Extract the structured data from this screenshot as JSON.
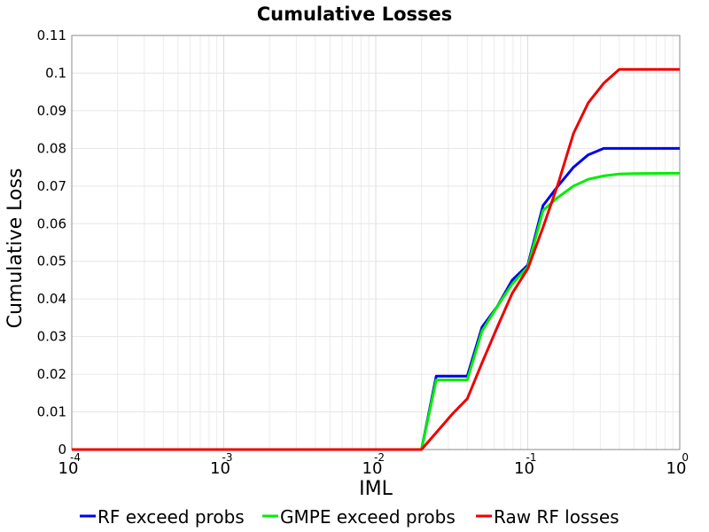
{
  "chart_data": {
    "type": "line",
    "title": "Cumulative Losses",
    "xlabel": "IML",
    "ylabel": "Cumulative Loss",
    "x_scale": "log",
    "xlim": [
      0.0001,
      1
    ],
    "ylim": [
      0,
      0.11
    ],
    "x_ticks": [
      {
        "base": "10",
        "exp": "-4",
        "value": 0.0001
      },
      {
        "base": "10",
        "exp": "-3",
        "value": 0.001
      },
      {
        "base": "10",
        "exp": "-2",
        "value": 0.01
      },
      {
        "base": "10",
        "exp": "-1",
        "value": 0.1
      },
      {
        "base": "10",
        "exp": "0",
        "value": 1
      }
    ],
    "y_ticks": [
      "0",
      "0.01",
      "0.02",
      "0.03",
      "0.04",
      "0.05",
      "0.06",
      "0.07",
      "0.08",
      "0.09",
      "0.1",
      "0.11"
    ],
    "y_tick_values": [
      0,
      0.01,
      0.02,
      0.03,
      0.04,
      0.05,
      0.06,
      0.07,
      0.08,
      0.09,
      0.1,
      0.11
    ],
    "grid": true,
    "legend_position": "bottom",
    "series": [
      {
        "name": "RF exceed probs",
        "color": "#0000ee",
        "points": [
          [
            0.0001,
            0
          ],
          [
            0.02,
            0
          ],
          [
            0.025,
            0.0195
          ],
          [
            0.04,
            0.0195
          ],
          [
            0.05,
            0.0325
          ],
          [
            0.063,
            0.038
          ],
          [
            0.079,
            0.045
          ],
          [
            0.1,
            0.049
          ],
          [
            0.126,
            0.0648
          ],
          [
            0.158,
            0.07
          ],
          [
            0.2,
            0.075
          ],
          [
            0.25,
            0.0783
          ],
          [
            0.316,
            0.08
          ],
          [
            1,
            0.08
          ]
        ]
      },
      {
        "name": "GMPE exceed probs",
        "color": "#00ee00",
        "points": [
          [
            0.0001,
            0
          ],
          [
            0.02,
            0
          ],
          [
            0.025,
            0.0185
          ],
          [
            0.04,
            0.0185
          ],
          [
            0.05,
            0.0315
          ],
          [
            0.063,
            0.038
          ],
          [
            0.079,
            0.044
          ],
          [
            0.1,
            0.0485
          ],
          [
            0.126,
            0.0635
          ],
          [
            0.158,
            0.067
          ],
          [
            0.2,
            0.07
          ],
          [
            0.25,
            0.0718
          ],
          [
            0.316,
            0.0727
          ],
          [
            0.4,
            0.0732
          ],
          [
            0.5,
            0.0733
          ],
          [
            1,
            0.0734
          ]
        ]
      },
      {
        "name": "Raw RF losses",
        "color": "#ee0000",
        "points": [
          [
            0.0001,
            0
          ],
          [
            0.02,
            0
          ],
          [
            0.025,
            0.0045
          ],
          [
            0.032,
            0.0095
          ],
          [
            0.04,
            0.0135
          ],
          [
            0.05,
            0.023
          ],
          [
            0.063,
            0.0325
          ],
          [
            0.079,
            0.0415
          ],
          [
            0.1,
            0.048
          ],
          [
            0.126,
            0.059
          ],
          [
            0.158,
            0.0705
          ],
          [
            0.2,
            0.084
          ],
          [
            0.25,
            0.0921
          ],
          [
            0.316,
            0.0973
          ],
          [
            0.4,
            0.101
          ],
          [
            1,
            0.101
          ]
        ]
      }
    ]
  }
}
